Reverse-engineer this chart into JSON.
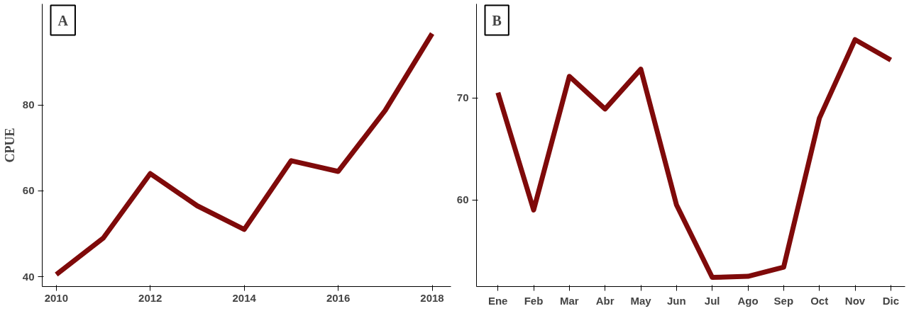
{
  "chart_data": [
    {
      "type": "line",
      "ylabel": "CPUE",
      "annotations": [
        "A"
      ],
      "x": [
        2010,
        2011,
        2012,
        2013,
        2014,
        2015,
        2016,
        2017,
        2018
      ],
      "series": [
        {
          "color": "#7f0a0a",
          "values": [
            40.5,
            49,
            64,
            56.5,
            51,
            67,
            64.5,
            78.7,
            96.6
          ]
        }
      ],
      "xlim": [
        2009.7,
        2018.4
      ],
      "ylim": [
        37.7,
        103.5
      ],
      "xticks": [
        2010,
        2012,
        2014,
        2016,
        2018
      ],
      "yticks": [
        40,
        60,
        80
      ],
      "grid": false,
      "marker": "none",
      "line_style": "solid"
    },
    {
      "type": "line",
      "annotations": [
        "B"
      ],
      "categories": [
        "Ene",
        "Feb",
        "Mar",
        "Abr",
        "May",
        "Jun",
        "Jul",
        "Ago",
        "Sep",
        "Oct",
        "Nov",
        "Dic"
      ],
      "series": [
        {
          "color": "#7f0a0a",
          "values": [
            70.5,
            59,
            72.1,
            68.9,
            72.8,
            59.5,
            52.4,
            52.5,
            53.4,
            68,
            75.7,
            73.7
          ]
        }
      ],
      "ylim": [
        51.5,
        79.2
      ],
      "yticks": [
        60,
        70
      ],
      "grid": false,
      "marker": "none",
      "line_style": "solid"
    }
  ]
}
